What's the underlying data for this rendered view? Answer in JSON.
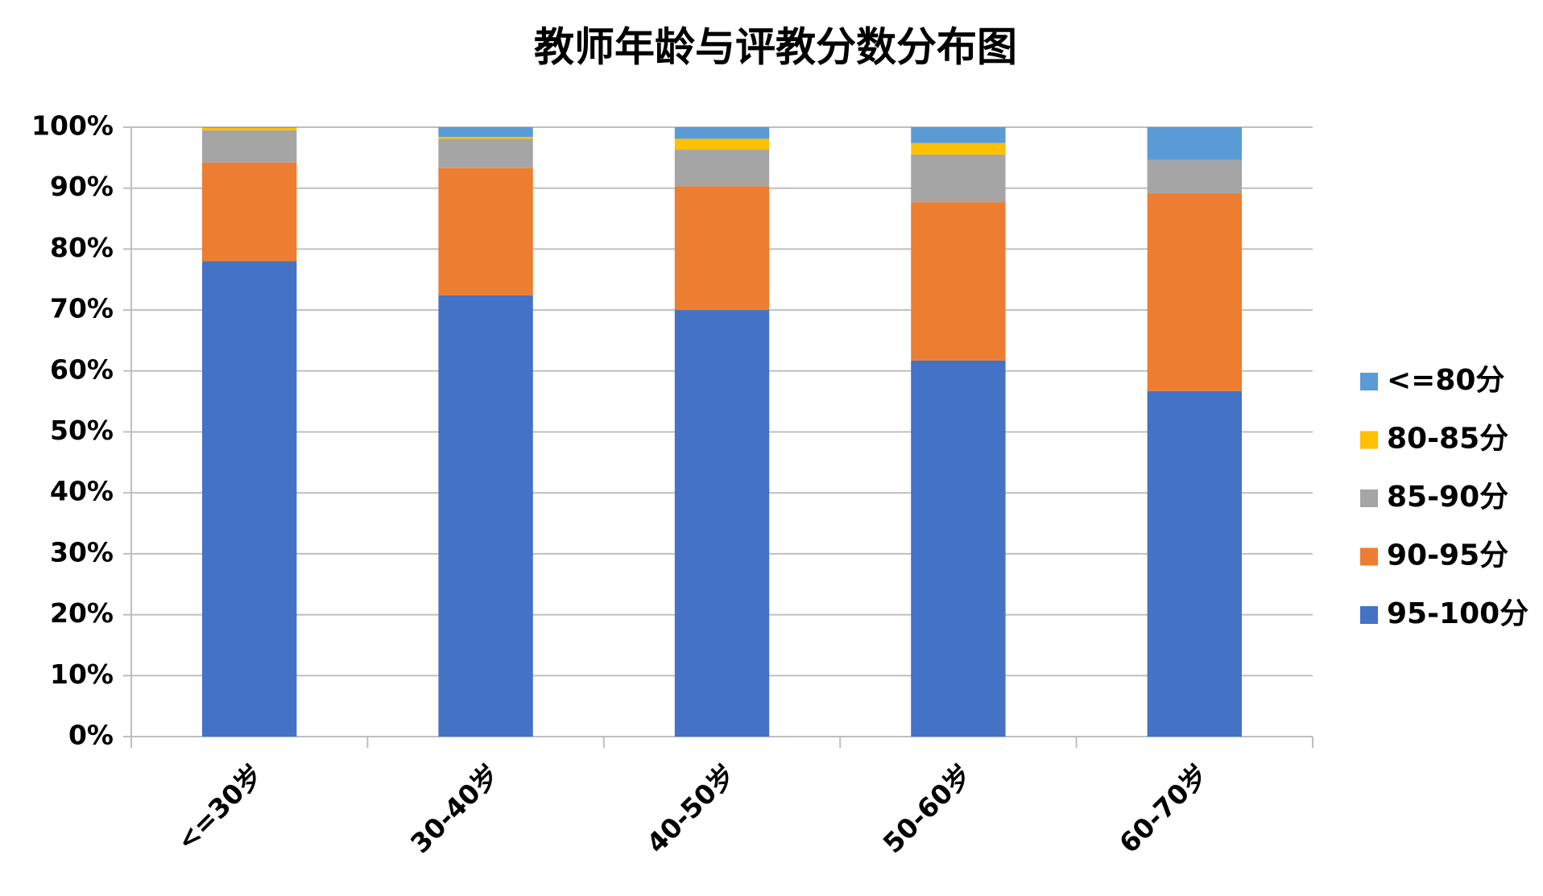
{
  "chart_data": {
    "type": "stacked_bar",
    "title": "教师年龄与评教分数分布图",
    "categories": [
      "<=30岁",
      "30-40岁",
      "40-50岁",
      "50-60岁",
      "60-70岁"
    ],
    "series": [
      {
        "name": "95-100分",
        "color": "#4472c4",
        "values": [
          78,
          72.4,
          70,
          61.7,
          56.7
        ]
      },
      {
        "name": "90-95分",
        "color": "#ed7d31",
        "values": [
          16.2,
          20.9,
          20.3,
          26,
          32.4
        ]
      },
      {
        "name": "85-90分",
        "color": "#a5a5a5",
        "values": [
          5.3,
          4.8,
          6,
          7.8,
          5.5
        ]
      },
      {
        "name": "80-85分",
        "color": "#ffc000",
        "values": [
          0.4,
          0.3,
          1.8,
          1.9,
          0
        ]
      },
      {
        "name": "<=80分",
        "color": "#5b9bd5",
        "values": [
          0.1,
          1.6,
          1.9,
          2.6,
          5.4
        ]
      }
    ],
    "ylim": [
      0,
      100
    ],
    "yticks": [
      {
        "value": 0,
        "label": "0%"
      },
      {
        "value": 10,
        "label": "10%"
      },
      {
        "value": 20,
        "label": "20%"
      },
      {
        "value": 30,
        "label": "30%"
      },
      {
        "value": 40,
        "label": "40%"
      },
      {
        "value": 50,
        "label": "50%"
      },
      {
        "value": 60,
        "label": "60%"
      },
      {
        "value": 70,
        "label": "70%"
      },
      {
        "value": 80,
        "label": "80%"
      },
      {
        "value": 90,
        "label": "90%"
      },
      {
        "value": 100,
        "label": "100%"
      }
    ],
    "grid": true,
    "legend": "right"
  }
}
